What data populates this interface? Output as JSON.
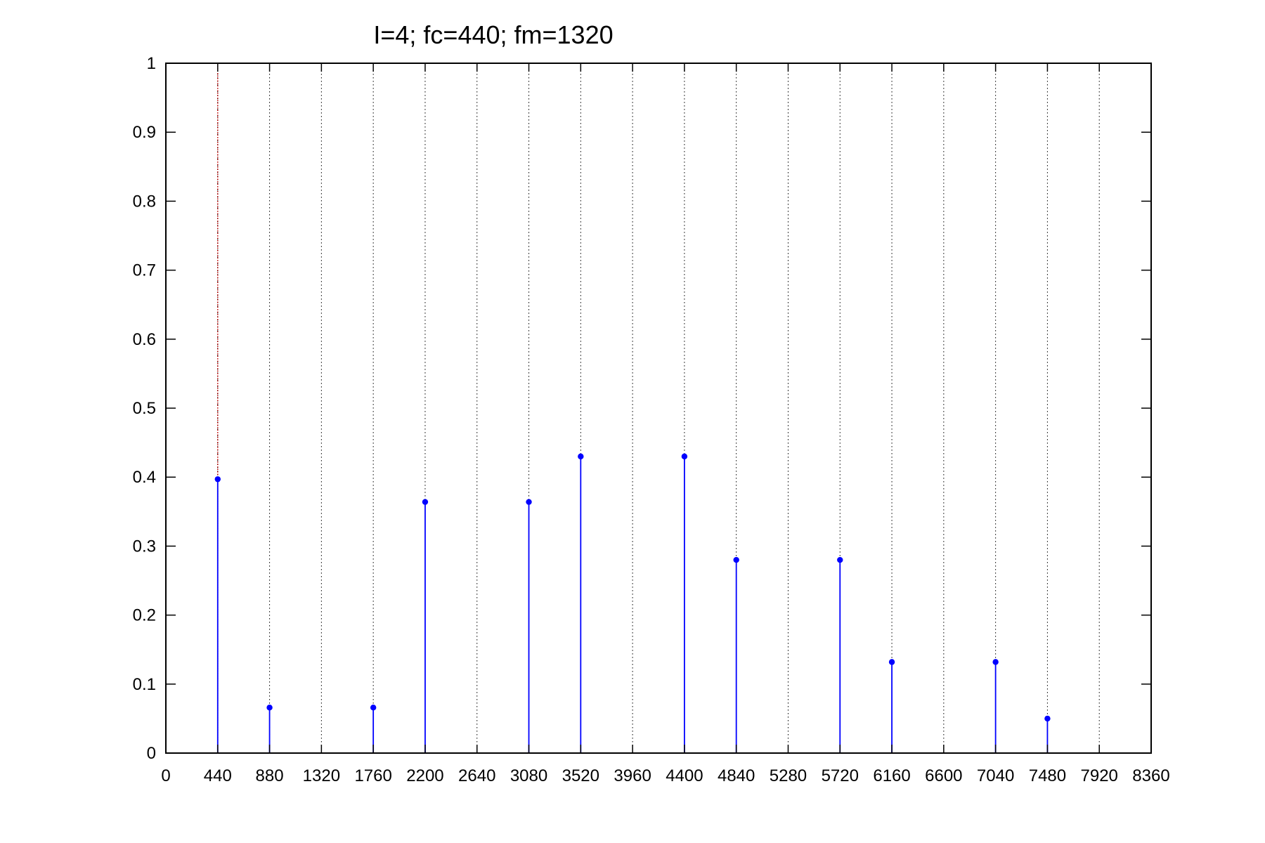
{
  "chart_data": {
    "type": "stem",
    "title": "I=4; fc=440; fm=1320",
    "xlabel": "",
    "ylabel": "",
    "xlim": [
      0,
      8360
    ],
    "ylim": [
      0,
      1
    ],
    "xticks": [
      0,
      440,
      880,
      1320,
      1760,
      2200,
      2640,
      3080,
      3520,
      3960,
      4400,
      4840,
      5280,
      5720,
      6160,
      6600,
      7040,
      7480,
      7920,
      8360
    ],
    "xtick_labels": [
      "0",
      "440",
      "880",
      "1320",
      "1760",
      "2200",
      "2640",
      "3080",
      "3520",
      "3960",
      "4400",
      "4840",
      "5280",
      "5720",
      "6160",
      "6600",
      "7040",
      "7480",
      "7920",
      "8360"
    ],
    "yticks": [
      0,
      0.1,
      0.2,
      0.3,
      0.4,
      0.5,
      0.6,
      0.7,
      0.8,
      0.9,
      1
    ],
    "ytick_labels": [
      "0",
      "0.1",
      "0.2",
      "0.3",
      "0.4",
      "0.5",
      "0.6",
      "0.7",
      "0.8",
      "0.9",
      "1"
    ],
    "grid": "x-dotted",
    "x": [
      440,
      880,
      1760,
      2200,
      3080,
      3520,
      4400,
      4840,
      5720,
      6160,
      7040,
      7480
    ],
    "y": [
      0.397,
      0.066,
      0.066,
      0.364,
      0.364,
      0.43,
      0.43,
      0.28,
      0.28,
      0.132,
      0.132,
      0.05
    ],
    "carrier_marker_x": 440,
    "colors": {
      "stems": "#0000ff",
      "carrier_line": "#c00000",
      "grid": "#000000",
      "axes": "#000000"
    }
  }
}
